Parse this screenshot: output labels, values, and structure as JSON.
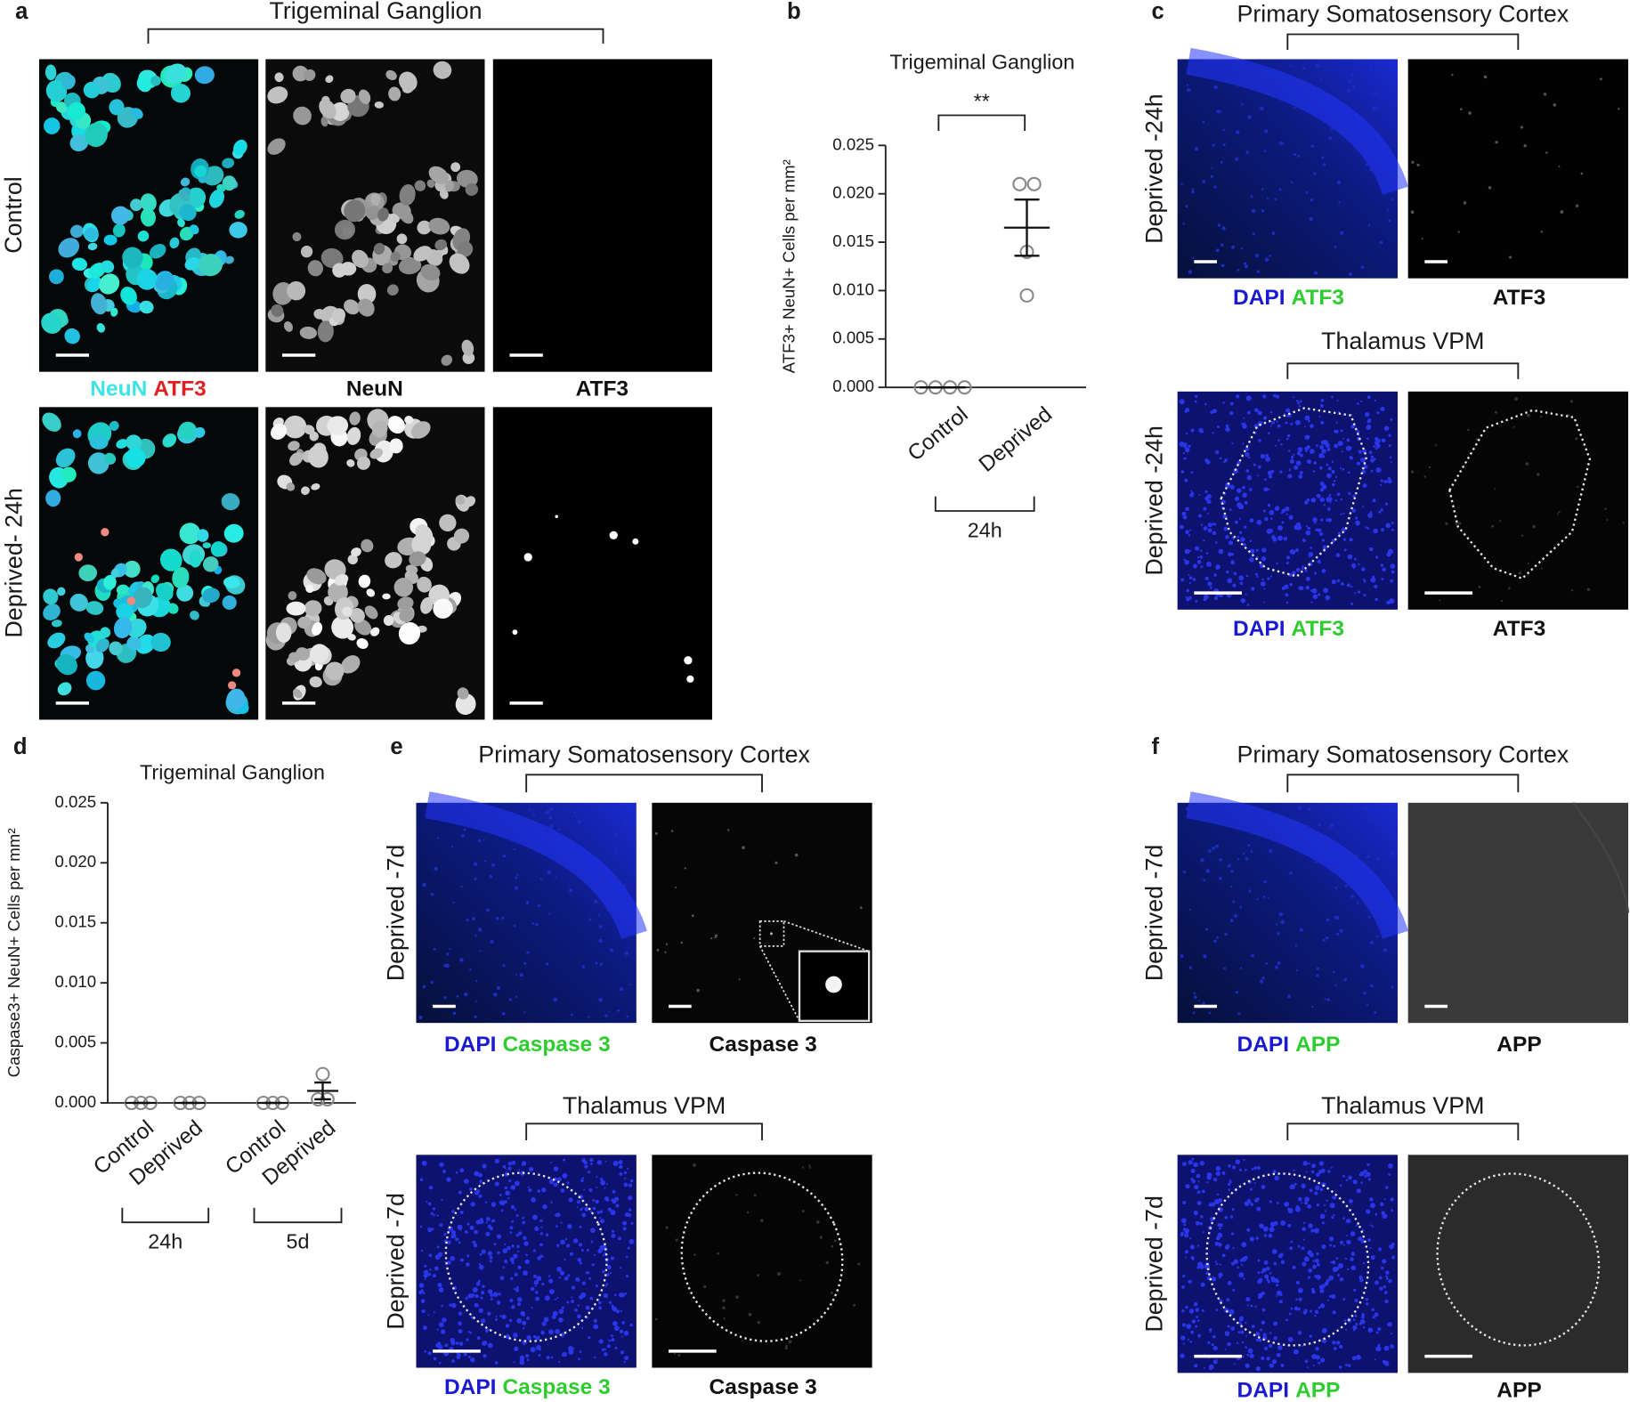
{
  "panels": [
    {
      "label": "a",
      "title": "Trigeminal Ganglion",
      "rows": [
        "Control",
        "Deprived- 24h"
      ],
      "captions": [
        [
          "NeuN",
          "ATF3"
        ],
        [
          "NeuN"
        ],
        [
          "ATF3"
        ]
      ]
    },
    {
      "label": "b"
    },
    {
      "label": "c",
      "sections": [
        {
          "title": "Primary Somatosensory Cortex",
          "row": "Deprived -24h",
          "captions": [
            [
              "DAPI",
              "ATF3"
            ],
            [
              "ATF3"
            ]
          ]
        },
        {
          "title": "Thalamus VPM",
          "row": "Deprived -24h",
          "captions": [
            [
              "DAPI",
              "ATF3"
            ],
            [
              "ATF3"
            ]
          ]
        }
      ]
    },
    {
      "label": "d"
    },
    {
      "label": "e",
      "sections": [
        {
          "title": "Primary Somatosensory Cortex",
          "row": "Deprived -7d",
          "captions": [
            [
              "DAPI",
              "Caspase 3"
            ],
            [
              "Caspase 3"
            ]
          ]
        },
        {
          "title": "Thalamus VPM",
          "row": "Deprived -7d",
          "captions": [
            [
              "DAPI",
              "Caspase 3"
            ],
            [
              "Caspase 3"
            ]
          ]
        }
      ]
    },
    {
      "label": "f",
      "sections": [
        {
          "title": "Primary Somatosensory Cortex",
          "row": "Deprived -7d",
          "captions": [
            [
              "DAPI",
              "APP"
            ],
            [
              "APP"
            ]
          ]
        },
        {
          "title": "Thalamus VPM",
          "row": "Deprived -7d",
          "captions": [
            [
              "DAPI",
              "APP"
            ],
            [
              "APP"
            ]
          ]
        }
      ]
    }
  ],
  "chart_data": [
    {
      "type": "dot",
      "title": "Trigeminal Ganglion",
      "y_label": "ATF3+ NeuN+ Cells per mm²",
      "categories": [
        "Control",
        "Deprived"
      ],
      "groups": [
        "24h"
      ],
      "significance": "**",
      "points": [
        [
          0,
          0,
          0,
          0
        ],
        [
          0.021,
          0.021,
          0.014,
          0.0095
        ]
      ],
      "mean": [
        0,
        0.0165
      ],
      "error": [
        0,
        0.0029
      ],
      "color": "#888888",
      "ylim": [
        0,
        0.025
      ],
      "yticks": [
        {
          "value": 0,
          "label": "0.000"
        },
        {
          "value": 0.005,
          "label": "0.005"
        },
        {
          "value": 0.01,
          "label": "0.010"
        },
        {
          "value": 0.015,
          "label": "0.015"
        },
        {
          "value": 0.02,
          "label": "0.020"
        },
        {
          "value": 0.025,
          "label": "0.025"
        }
      ]
    },
    {
      "type": "dot",
      "title": "Trigeminal Ganglion",
      "y_label": "Caspase3+ NeuN+ Cells per mm²",
      "categories": [
        "Control",
        "Deprived",
        "Control",
        "Deprived"
      ],
      "groups": [
        "24h",
        "5d"
      ],
      "points": [
        [
          0,
          0,
          0
        ],
        [
          0,
          0,
          0
        ],
        [
          0,
          0,
          0
        ],
        [
          0.0024,
          0.0003,
          0.0003
        ]
      ],
      "mean": [
        0,
        0,
        0,
        0.001
      ],
      "error": [
        0,
        0,
        0,
        0.0007
      ],
      "color": "#888888",
      "ylim": [
        0,
        0.025
      ],
      "yticks": [
        {
          "value": 0,
          "label": "0.000"
        },
        {
          "value": 0.005,
          "label": "0.005"
        },
        {
          "value": 0.01,
          "label": "0.010"
        },
        {
          "value": 0.015,
          "label": "0.015"
        },
        {
          "value": 0.02,
          "label": "0.020"
        },
        {
          "value": 0.025,
          "label": "0.025"
        }
      ]
    }
  ]
}
